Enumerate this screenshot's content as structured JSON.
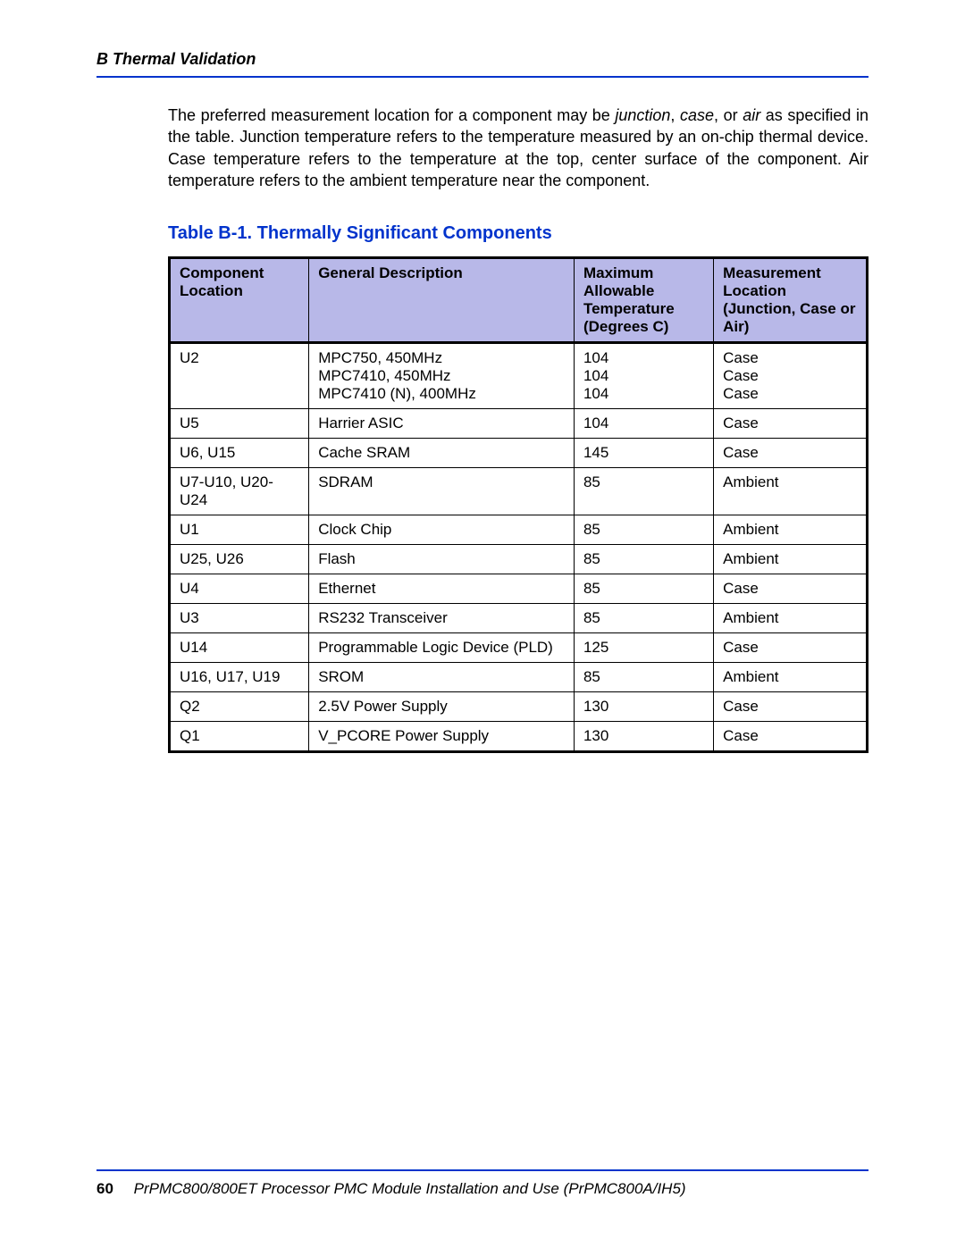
{
  "header": {
    "running_head": "B  Thermal Validation"
  },
  "paragraph": {
    "p1a": "The preferred measurement location for a component may be ",
    "i1": "junction",
    "p1b": ", ",
    "i2": "case",
    "p1c": ", or ",
    "i3": "air",
    "p1d": " as specified in the table. Junction temperature refers to the temperature measured by an on-chip thermal device. Case temperature refers to the temperature at the top, center surface of the component. Air temperature refers to the ambient temperature near the component."
  },
  "table": {
    "caption": "Table B-1. Thermally Significant Components",
    "headers": {
      "location": "Component Location",
      "description": "General Description",
      "temp": "Maximum Allowable Temperature (Degrees C)",
      "measurement": "Measurement Location (Junction, Case or Air)"
    },
    "rows": [
      {
        "location": "U2",
        "description": "MPC750, 450MHz\nMPC7410, 450MHz\nMPC7410 (N), 400MHz",
        "temp": "104\n104\n104",
        "measurement": "Case\nCase\nCase"
      },
      {
        "location": "U5",
        "description": "Harrier ASIC",
        "temp": "104",
        "measurement": "Case"
      },
      {
        "location": "U6, U15",
        "description": "Cache SRAM",
        "temp": "145",
        "measurement": "Case"
      },
      {
        "location": "U7-U10, U20-U24",
        "description": "SDRAM",
        "temp": "85",
        "measurement": "Ambient"
      },
      {
        "location": "U1",
        "description": "Clock Chip",
        "temp": "85",
        "measurement": "Ambient"
      },
      {
        "location": "U25, U26",
        "description": "Flash",
        "temp": "85",
        "measurement": "Ambient"
      },
      {
        "location": "U4",
        "description": "Ethernet",
        "temp": "85",
        "measurement": "Case"
      },
      {
        "location": "U3",
        "description": "RS232 Transceiver",
        "temp": "85",
        "measurement": "Ambient"
      },
      {
        "location": "U14",
        "description": "Programmable Logic Device (PLD)",
        "temp": "125",
        "measurement": "Case"
      },
      {
        "location": "U16, U17, U19",
        "description": "SROM",
        "temp": "85",
        "measurement": "Ambient"
      },
      {
        "location": "Q2",
        "description": "2.5V Power Supply",
        "temp": "130",
        "measurement": "Case"
      },
      {
        "location": "Q1",
        "description": "V_PCORE Power Supply",
        "temp": "130",
        "measurement": "Case"
      }
    ]
  },
  "footer": {
    "page_number": "60",
    "doc_title": "PrPMC800/800ET Processor PMC Module Installation and Use (PrPMC800A/IH5)"
  },
  "colors": {
    "accent_blue": "#0033cc",
    "header_fill": "#b8b8e8",
    "text": "#000000",
    "background": "#ffffff"
  }
}
